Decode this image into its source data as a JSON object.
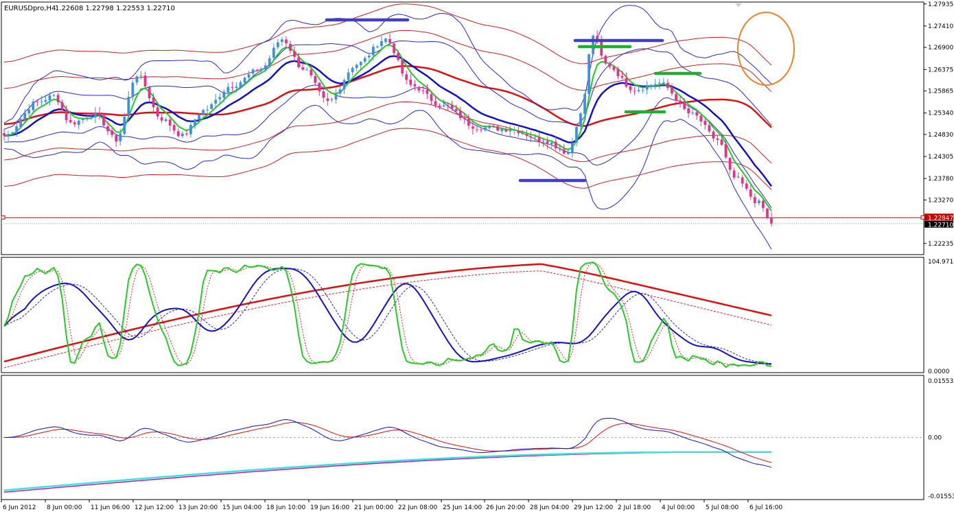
{
  "header": {
    "symbol": "EURUSDpro,H4",
    "ohlc": "1.22608 1.22798 1.22553 1.22710"
  },
  "colors": {
    "bull": "#3d8fe0",
    "bear": "#e8308a",
    "ema_fast": "#22cc22",
    "ema_mid": "#1010c8",
    "ma_slow": "#dd1010",
    "envelope": "#cc2020",
    "bands": "#2828d0",
    "marker_blue": "#4040c0",
    "marker_green": "#20b030",
    "circle": "#f08020",
    "macd_signal": "#40e0e0",
    "macd_signal2": "#b020b0"
  },
  "chart_data": [
    {
      "type": "candlestick",
      "panel": "price",
      "y_ticks": [
        "1.27935",
        "1.27410",
        "1.26900",
        "1.26375",
        "1.25865",
        "1.25340",
        "1.24830",
        "1.24305",
        "1.23780",
        "1.23270",
        "1.22235"
      ],
      "ylim": [
        1.2197,
        1.2798
      ],
      "current_price_tag": "1.22710",
      "ask_price_tag": "1.22847",
      "x_ticks": [
        "6 Jun 2012",
        "8 Jun 00:00",
        "11 Jun 06:00",
        "12 Jun 12:00",
        "13 Jun 20:00",
        "15 Jun 04:00",
        "18 Jun 10:00",
        "19 Jun 16:00",
        "21 Jun 00:00",
        "22 Jun 08:00",
        "25 Jun 14:00",
        "26 Jun 20:00",
        "28 Jun 04:00",
        "29 Jun 12:00",
        "2 Jul 18:00",
        "4 Jul 00:00",
        "5 Jul 08:00",
        "6 Jul 16:00"
      ],
      "close_anchors": [
        [
          0,
          1.248
        ],
        [
          8,
          1.256
        ],
        [
          12,
          1.2575
        ],
        [
          16,
          1.251
        ],
        [
          22,
          1.253
        ],
        [
          27,
          1.247
        ],
        [
          32,
          1.2625
        ],
        [
          38,
          1.252
        ],
        [
          43,
          1.248
        ],
        [
          48,
          1.254
        ],
        [
          55,
          1.26
        ],
        [
          62,
          1.264
        ],
        [
          67,
          1.271
        ],
        [
          72,
          1.264
        ],
        [
          78,
          1.256
        ],
        [
          85,
          1.265
        ],
        [
          92,
          1.271
        ],
        [
          98,
          1.26
        ],
        [
          106,
          1.255
        ],
        [
          114,
          1.25
        ],
        [
          122,
          1.2495
        ],
        [
          130,
          1.247
        ],
        [
          136,
          1.244
        ],
        [
          139,
          1.253
        ],
        [
          142,
          1.272
        ],
        [
          145,
          1.265
        ],
        [
          152,
          1.259
        ],
        [
          158,
          1.2605
        ],
        [
          166,
          1.253
        ],
        [
          172,
          1.247
        ],
        [
          176,
          1.238
        ],
        [
          182,
          1.232
        ],
        [
          185,
          1.2271
        ]
      ]
    },
    {
      "type": "line",
      "panel": "stochastic",
      "y_ticks": [
        "104.9717",
        "0.0000"
      ],
      "ylim": [
        0,
        104.9717
      ]
    },
    {
      "type": "line",
      "panel": "macd",
      "y_ticks": [
        "0.015532",
        "0.00",
        "-0.015532"
      ],
      "ylim": [
        -0.015532,
        0.015532
      ]
    }
  ]
}
